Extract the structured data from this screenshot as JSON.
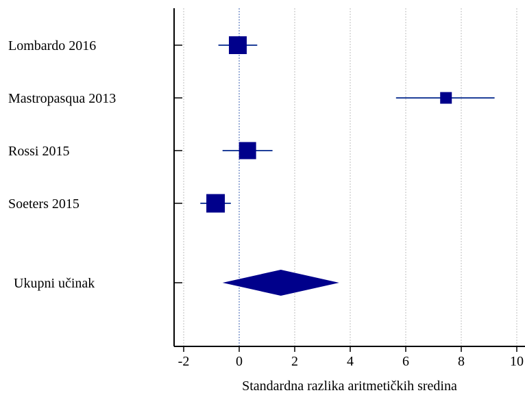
{
  "chart_data": {
    "type": "forest",
    "xlabel": "Standardna razlika aritmetičkih sredina",
    "xlim": [
      -2.4,
      10.3
    ],
    "xticks": [
      -2,
      0,
      2,
      4,
      6,
      8,
      10
    ],
    "xtick_labels": [
      "-2",
      "0",
      "2",
      "4",
      "6",
      "8",
      "10"
    ],
    "reference_line": 0,
    "grid": "vertical-dotted",
    "colors": {
      "marker": "#00008B",
      "ci_line": "#1f3f99",
      "axis": "#000000",
      "grid": "#bdbdbd"
    },
    "studies": [
      {
        "label": "Lombardo 2016",
        "estimate": -0.05,
        "ci_low": -0.75,
        "ci_high": 0.65,
        "weight": 1.0
      },
      {
        "label": "Mastropasqua 2013",
        "estimate": 7.45,
        "ci_low": 5.65,
        "ci_high": 9.2,
        "weight": 0.35
      },
      {
        "label": "Rossi 2015",
        "estimate": 0.3,
        "ci_low": -0.6,
        "ci_high": 1.2,
        "weight": 0.95
      },
      {
        "label": "Soeters 2015",
        "estimate": -0.85,
        "ci_low": -1.4,
        "ci_high": -0.3,
        "weight": 1.1
      }
    ],
    "overall": {
      "label": "Ukupni učinak",
      "estimate": 1.5,
      "ci_low": -0.6,
      "ci_high": 3.6
    }
  }
}
